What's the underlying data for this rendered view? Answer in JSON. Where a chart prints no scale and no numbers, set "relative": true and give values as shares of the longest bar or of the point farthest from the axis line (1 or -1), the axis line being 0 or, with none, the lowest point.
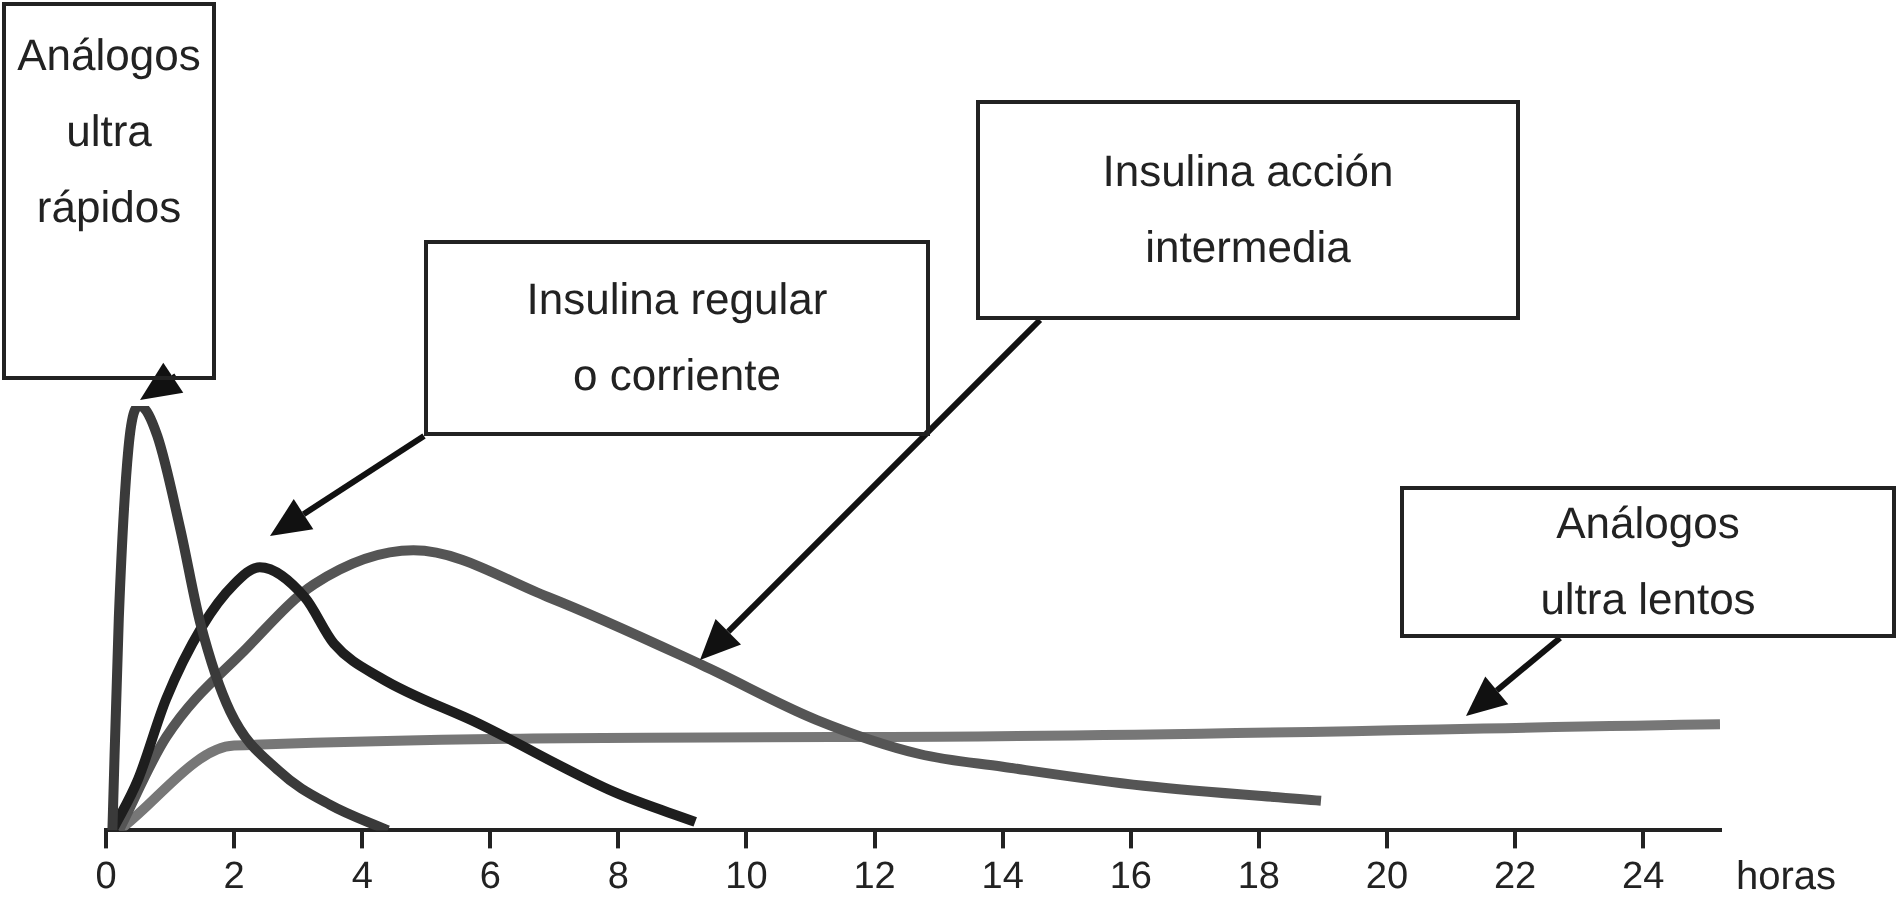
{
  "chart_data": {
    "type": "line",
    "relative": true,
    "xlabel": "horas",
    "xlim": [
      0,
      25.2
    ],
    "xticks": [
      0,
      2,
      4,
      6,
      8,
      10,
      12,
      14,
      16,
      18,
      20,
      22,
      24
    ],
    "grid": false,
    "legend": false,
    "marker": "none",
    "line_style": "solid",
    "annotations": [
      "Análogos\nultra\nrápidos",
      "Insulina regular\no corriente",
      "Insulina acción\nintermedia",
      "Análogos\nultra lentos"
    ],
    "series": [
      {
        "color": "#3a3a3a",
        "x": [
          0.1,
          0.2,
          0.35,
          0.53,
          0.8,
          1.16,
          1.47,
          1.94,
          2.7,
          3.5,
          4.4
        ],
        "values": [
          0,
          0.5,
          0.9,
          1,
          0.93,
          0.71,
          0.49,
          0.28,
          0.14,
          0.06,
          0
        ]
      },
      {
        "color": "#1e1e1e",
        "x": [
          0.1,
          0.5,
          0.94,
          1.5,
          2,
          2.4,
          3.1,
          3.56,
          4.28,
          5.84,
          7.94,
          9.2
        ],
        "values": [
          0,
          0.12,
          0.31,
          0.48,
          0.58,
          0.62,
          0.55,
          0.44,
          0.36,
          0.25,
          0.09,
          0.02
        ]
      },
      {
        "color": "#555555",
        "x": [
          0.2,
          0.94,
          2.2,
          3.25,
          4.8,
          6.9,
          9.3,
          11.1,
          12.7,
          14,
          16.2,
          18.97
        ],
        "values": [
          0,
          0.22,
          0.43,
          0.58,
          0.66,
          0.55,
          0.39,
          0.26,
          0.18,
          0.15,
          0.105,
          0.07
        ]
      },
      {
        "color": "#777777",
        "x": [
          0.2,
          2,
          12,
          25.2
        ],
        "values": [
          0,
          0.2,
          0.22,
          0.25
        ]
      }
    ]
  }
}
